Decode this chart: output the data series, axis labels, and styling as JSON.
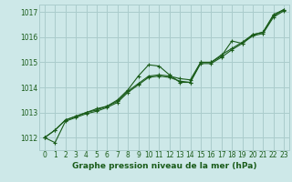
{
  "bg_color": "#cde8e8",
  "plot_bg_color": "#cde8e8",
  "grid_color": "#aacccc",
  "line_color": "#1a5c1a",
  "marker_color": "#1a5c1a",
  "xlabel": "Graphe pression niveau de la mer (hPa)",
  "xlabel_color": "#1a5c1a",
  "xlim": [
    -0.5,
    23.5
  ],
  "ylim": [
    1011.5,
    1017.3
  ],
  "yticks": [
    1012,
    1013,
    1014,
    1015,
    1016,
    1017
  ],
  "xticks": [
    0,
    1,
    2,
    3,
    4,
    5,
    6,
    7,
    8,
    9,
    10,
    11,
    12,
    13,
    14,
    15,
    16,
    17,
    18,
    19,
    20,
    21,
    22,
    23
  ],
  "s1": [
    1012.0,
    1012.3,
    1012.7,
    1012.85,
    1013.0,
    1013.15,
    1013.25,
    1013.5,
    1013.9,
    1014.45,
    1014.9,
    1014.85,
    1014.5,
    1014.2,
    1014.2,
    1015.0,
    1015.0,
    1015.25,
    1015.85,
    1015.75,
    1016.1,
    1016.2,
    1016.9,
    1017.1
  ],
  "s2": [
    1012.0,
    1012.3,
    1012.7,
    1012.85,
    1013.0,
    1013.1,
    1013.25,
    1013.45,
    1013.85,
    1014.15,
    1014.45,
    1014.5,
    1014.45,
    1014.35,
    1014.3,
    1015.0,
    1015.0,
    1015.3,
    1015.55,
    1015.8,
    1016.1,
    1016.2,
    1016.85,
    1017.1
  ],
  "s3": [
    1012.0,
    1011.8,
    1012.65,
    1012.8,
    1012.95,
    1013.05,
    1013.2,
    1013.4,
    1013.8,
    1014.1,
    1014.4,
    1014.45,
    1014.4,
    1014.25,
    1014.2,
    1014.95,
    1014.95,
    1015.2,
    1015.5,
    1015.75,
    1016.05,
    1016.15,
    1016.8,
    1017.05
  ],
  "lw": 0.8,
  "ms": 3.0,
  "tick_fontsize": 5.5,
  "xlabel_fontsize": 6.5
}
